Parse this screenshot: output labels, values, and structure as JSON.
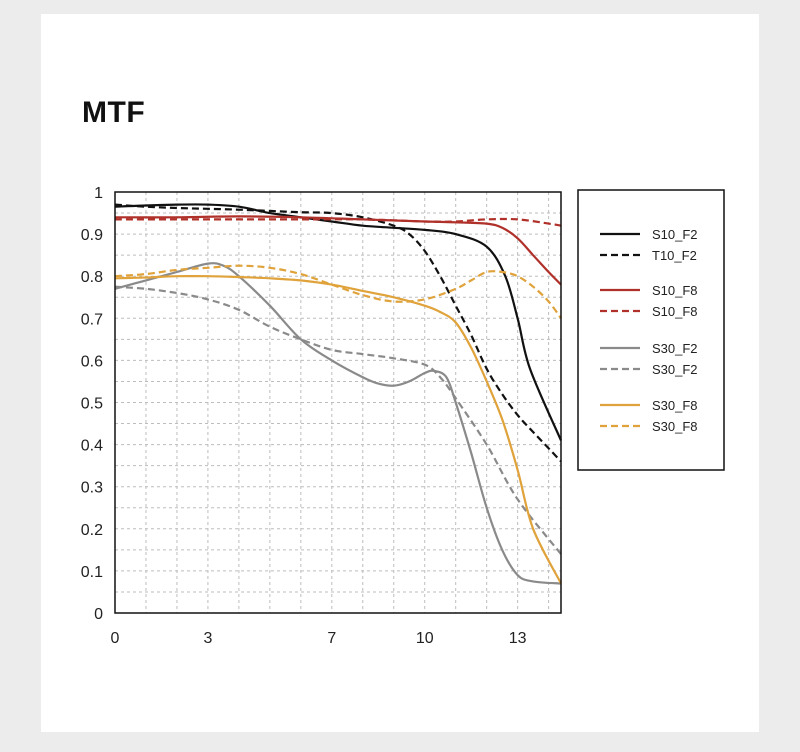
{
  "chart_data": {
    "type": "line",
    "title": "MTF",
    "xlabel": "",
    "ylabel": "",
    "xlim": [
      0,
      14.4
    ],
    "ylim": [
      0,
      1
    ],
    "grid": true,
    "legend_position": "right",
    "x_ticks": [
      0,
      3,
      7,
      10,
      13
    ],
    "y_ticks": [
      0,
      0.1,
      0.2,
      0.3,
      0.4,
      0.5,
      0.6,
      0.7,
      0.8,
      0.9,
      1
    ],
    "y_tick_labels": [
      "0",
      "0.1",
      "0.2",
      "0.3",
      "0.4",
      "0.5",
      "0.6",
      "0.7",
      "0.8",
      "0.9",
      "1"
    ],
    "series": [
      {
        "name": "S10_F2",
        "color": "#111111",
        "dash": false,
        "x": [
          0,
          1,
          2,
          3,
          4,
          5,
          6,
          7,
          8,
          9,
          10,
          11,
          12,
          12.6,
          13,
          13.4,
          14.4
        ],
        "y": [
          0.965,
          0.968,
          0.97,
          0.97,
          0.965,
          0.95,
          0.94,
          0.93,
          0.92,
          0.915,
          0.91,
          0.9,
          0.87,
          0.8,
          0.7,
          0.58,
          0.41
        ]
      },
      {
        "name": "T10_F2",
        "color": "#111111",
        "dash": true,
        "x": [
          0,
          1,
          2,
          3,
          4,
          5,
          6,
          7,
          8,
          9,
          9.5,
          10,
          10.5,
          11,
          11.5,
          12,
          12.5,
          13,
          13.5,
          14.4
        ],
        "y": [
          0.97,
          0.965,
          0.962,
          0.96,
          0.958,
          0.955,
          0.952,
          0.95,
          0.94,
          0.92,
          0.9,
          0.86,
          0.8,
          0.73,
          0.66,
          0.58,
          0.52,
          0.47,
          0.43,
          0.36
        ]
      },
      {
        "name": "S10_F8",
        "color": "#b0302a",
        "dash": false,
        "x": [
          0,
          2,
          4,
          6,
          8,
          10,
          11,
          12,
          12.5,
          13,
          13.5,
          14,
          14.4
        ],
        "y": [
          0.94,
          0.94,
          0.942,
          0.94,
          0.935,
          0.93,
          0.928,
          0.925,
          0.915,
          0.89,
          0.85,
          0.81,
          0.78
        ]
      },
      {
        "name": "S10_F8",
        "color": "#b0302a",
        "dash": true,
        "x": [
          0,
          2,
          4,
          6,
          8,
          10,
          11,
          12,
          13,
          14,
          14.4
        ],
        "y": [
          0.935,
          0.935,
          0.935,
          0.935,
          0.935,
          0.93,
          0.93,
          0.935,
          0.935,
          0.925,
          0.92
        ]
      },
      {
        "name": "S30_F2",
        "color": "#8a8a8a",
        "dash": false,
        "x": [
          0,
          1,
          2,
          3,
          3.5,
          4,
          5,
          6,
          7,
          8,
          8.5,
          9,
          9.5,
          10,
          10.3,
          10.7,
          11,
          11.5,
          12,
          12.5,
          13,
          13.5,
          14.4
        ],
        "y": [
          0.77,
          0.79,
          0.81,
          0.83,
          0.825,
          0.8,
          0.73,
          0.65,
          0.6,
          0.56,
          0.545,
          0.54,
          0.55,
          0.57,
          0.575,
          0.56,
          0.5,
          0.38,
          0.25,
          0.15,
          0.09,
          0.075,
          0.07
        ]
      },
      {
        "name": "S30_F2",
        "color": "#8a8a8a",
        "dash": true,
        "x": [
          0,
          1,
          2,
          3,
          4,
          5,
          6,
          7,
          8,
          9,
          10,
          10.5,
          11,
          12,
          13,
          14.4
        ],
        "y": [
          0.775,
          0.77,
          0.76,
          0.745,
          0.72,
          0.68,
          0.65,
          0.625,
          0.615,
          0.605,
          0.59,
          0.56,
          0.51,
          0.4,
          0.27,
          0.14
        ]
      },
      {
        "name": "S30_F8",
        "color": "#e0a23a",
        "dash": false,
        "x": [
          0,
          1,
          2,
          3,
          4,
          5,
          6,
          7,
          8,
          9,
          10,
          10.5,
          11,
          11.5,
          12,
          12.5,
          13,
          13.5,
          14.4
        ],
        "y": [
          0.795,
          0.797,
          0.8,
          0.8,
          0.798,
          0.795,
          0.79,
          0.78,
          0.765,
          0.75,
          0.73,
          0.715,
          0.69,
          0.63,
          0.55,
          0.46,
          0.34,
          0.2,
          0.07
        ]
      },
      {
        "name": "S30_F8",
        "color": "#e0a23a",
        "dash": true,
        "x": [
          0,
          1,
          2,
          3,
          4,
          5,
          6,
          7,
          8,
          9,
          10,
          11,
          11.5,
          12,
          12.5,
          13,
          13.5,
          14,
          14.4
        ],
        "y": [
          0.8,
          0.805,
          0.815,
          0.82,
          0.825,
          0.82,
          0.805,
          0.78,
          0.755,
          0.74,
          0.745,
          0.77,
          0.79,
          0.81,
          0.81,
          0.8,
          0.775,
          0.74,
          0.7
        ]
      }
    ]
  }
}
